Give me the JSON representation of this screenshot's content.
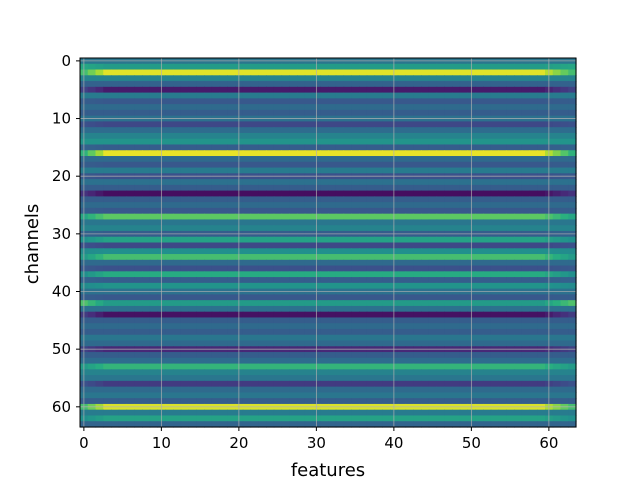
{
  "chart_data": {
    "type": "heatmap",
    "colormap": "viridis",
    "xlabel": "features",
    "ylabel": "channels",
    "n_rows": 64,
    "n_cols": 64,
    "xlim": [
      -0.5,
      63.5
    ],
    "ylim": [
      63.5,
      -0.5
    ],
    "xticks": [
      0,
      10,
      20,
      30,
      40,
      50,
      60
    ],
    "xtick_labels": [
      "0",
      "10",
      "20",
      "30",
      "40",
      "50",
      "60"
    ],
    "yticks": [
      0,
      10,
      20,
      30,
      40,
      50,
      60
    ],
    "ytick_labels": [
      "0",
      "10",
      "20",
      "30",
      "40",
      "50",
      "60"
    ],
    "grid": true,
    "row_levels": [
      0.4,
      0.55,
      0.96,
      0.45,
      0.32,
      0.08,
      0.42,
      0.28,
      0.35,
      0.3,
      0.38,
      0.22,
      0.36,
      0.45,
      0.52,
      0.3,
      0.97,
      0.35,
      0.28,
      0.42,
      0.25,
      0.38,
      0.3,
      0.04,
      0.3,
      0.35,
      0.28,
      0.75,
      0.4,
      0.45,
      0.3,
      0.58,
      0.22,
      0.5,
      0.7,
      0.35,
      0.25,
      0.62,
      0.3,
      0.52,
      0.38,
      0.28,
      0.55,
      0.38,
      0.05,
      0.3,
      0.35,
      0.3,
      0.4,
      0.35,
      0.12,
      0.3,
      0.36,
      0.66,
      0.45,
      0.4,
      0.18,
      0.35,
      0.4,
      0.3,
      0.95,
      0.42,
      0.58,
      0.33
    ],
    "row_edge_levels": [
      0.4,
      0.6,
      0.7,
      0.45,
      0.32,
      0.2,
      0.42,
      0.3,
      0.35,
      0.3,
      0.38,
      0.25,
      0.36,
      0.45,
      0.52,
      0.32,
      0.65,
      0.35,
      0.3,
      0.42,
      0.28,
      0.38,
      0.3,
      0.15,
      0.3,
      0.35,
      0.3,
      0.6,
      0.4,
      0.45,
      0.32,
      0.5,
      0.25,
      0.48,
      0.55,
      0.35,
      0.28,
      0.5,
      0.32,
      0.48,
      0.38,
      0.3,
      0.72,
      0.38,
      0.18,
      0.3,
      0.35,
      0.3,
      0.4,
      0.35,
      0.2,
      0.3,
      0.36,
      0.55,
      0.45,
      0.4,
      0.25,
      0.35,
      0.4,
      0.3,
      0.7,
      0.42,
      0.5,
      0.33
    ]
  }
}
